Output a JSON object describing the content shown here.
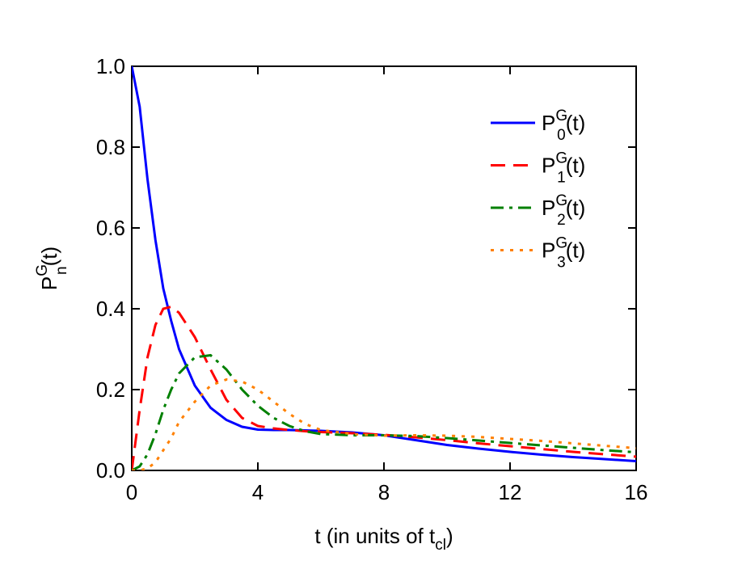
{
  "chart_data": {
    "type": "line",
    "xlabel": {
      "text": "t (in units of t",
      "sub": "cl",
      "rest": ")"
    },
    "ylabel": {
      "base": "P",
      "sup": "G",
      "sub": "n",
      "rest": "(t)"
    },
    "xlim": [
      0,
      16
    ],
    "ylim": [
      0,
      1
    ],
    "xticks": [
      0,
      4,
      8,
      12,
      16
    ],
    "yticks": [
      {
        "value": 0,
        "label": "0.0"
      },
      0.2,
      0.4,
      0.6,
      0.8,
      {
        "value": 1,
        "label": "1.0"
      }
    ],
    "legend": "upper right",
    "x": [
      0,
      0.25,
      0.5,
      0.75,
      1,
      1.25,
      1.5,
      2,
      2.5,
      3,
      3.5,
      4,
      4.5,
      5,
      5.5,
      6,
      7,
      8,
      9,
      10,
      11,
      12,
      13,
      14,
      15,
      16
    ],
    "series": [
      {
        "name": {
          "base": "P",
          "sup": "G",
          "sub": "0",
          "rest": "(t)"
        },
        "color": "#0000ff",
        "linestyle": "solid",
        "values": [
          1.0,
          0.9,
          0.72,
          0.57,
          0.45,
          0.37,
          0.3,
          0.21,
          0.155,
          0.125,
          0.108,
          0.101,
          0.1,
          0.1,
          0.099,
          0.098,
          0.094,
          0.087,
          0.075,
          0.063,
          0.054,
          0.046,
          0.039,
          0.033,
          0.028,
          0.023
        ]
      },
      {
        "name": {
          "base": "P",
          "sup": "G",
          "sub": "1",
          "rest": "(t)"
        },
        "color": "#ff0000",
        "linestyle": "dashed",
        "values": [
          0,
          0.15,
          0.28,
          0.36,
          0.4,
          0.405,
          0.39,
          0.33,
          0.25,
          0.175,
          0.13,
          0.11,
          0.104,
          0.1,
          0.097,
          0.095,
          0.092,
          0.088,
          0.082,
          0.075,
          0.067,
          0.06,
          0.053,
          0.046,
          0.04,
          0.034
        ]
      },
      {
        "name": {
          "base": "P",
          "sup": "G",
          "sub": "2",
          "rest": "(t)"
        },
        "color": "#008000",
        "linestyle": "dashdot",
        "values": [
          0,
          0.01,
          0.04,
          0.09,
          0.15,
          0.2,
          0.24,
          0.28,
          0.285,
          0.25,
          0.2,
          0.16,
          0.13,
          0.11,
          0.097,
          0.09,
          0.087,
          0.087,
          0.085,
          0.08,
          0.074,
          0.068,
          0.062,
          0.056,
          0.05,
          0.045
        ]
      },
      {
        "name": {
          "base": "P",
          "sup": "G",
          "sub": "3",
          "rest": "(t)"
        },
        "color": "#ff8000",
        "linestyle": "dotted",
        "values": [
          0,
          0,
          0.005,
          0.02,
          0.05,
          0.08,
          0.12,
          0.17,
          0.21,
          0.225,
          0.22,
          0.2,
          0.17,
          0.14,
          0.115,
          0.1,
          0.09,
          0.086,
          0.087,
          0.086,
          0.083,
          0.078,
          0.073,
          0.067,
          0.061,
          0.055
        ]
      }
    ]
  }
}
